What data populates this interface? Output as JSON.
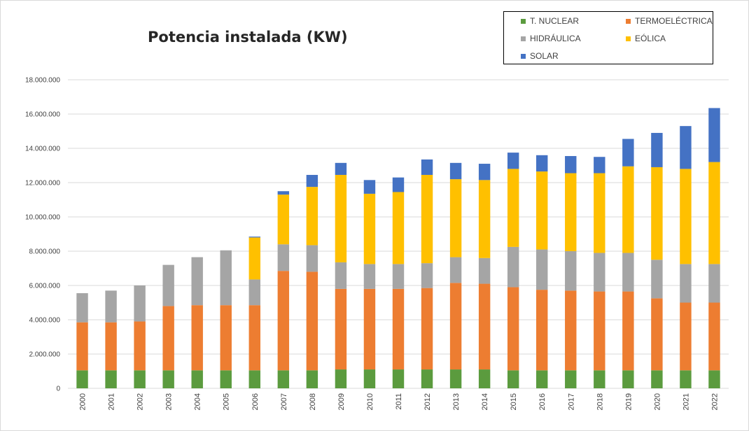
{
  "chart_data": {
    "type": "bar",
    "stacked": true,
    "title": "Potencia instalada (KW)",
    "xlabel": "",
    "ylabel": "",
    "ylim": [
      0,
      18000000
    ],
    "yticks": [
      "0",
      "2.000.000",
      "4.000.000",
      "6.000.000",
      "8.000.000",
      "10.000.000",
      "12.000.000",
      "14.000.000",
      "16.000.000",
      "18.000.000"
    ],
    "grid": true,
    "legend_position": "top-right",
    "categories": [
      "2000",
      "2001",
      "2002",
      "2003",
      "2004",
      "2005",
      "2006",
      "2007",
      "2008",
      "2009",
      "2010",
      "2011",
      "2012",
      "2013",
      "2014",
      "2015",
      "2016",
      "2017",
      "2018",
      "2019",
      "2020",
      "2021",
      "2022"
    ],
    "series": [
      {
        "name": "T. NUCLEAR",
        "color": "#5b9b3e",
        "values": [
          1050000,
          1050000,
          1050000,
          1050000,
          1050000,
          1050000,
          1050000,
          1050000,
          1050000,
          1100000,
          1100000,
          1100000,
          1100000,
          1100000,
          1100000,
          1050000,
          1050000,
          1050000,
          1050000,
          1050000,
          1050000,
          1050000,
          1050000
        ]
      },
      {
        "name": "TERMOELÉCTRICA",
        "color": "#ed7d31",
        "values": [
          2800000,
          2800000,
          2850000,
          3750000,
          3800000,
          3800000,
          3800000,
          5800000,
          5750000,
          4700000,
          4700000,
          4700000,
          4750000,
          5050000,
          5000000,
          4850000,
          4700000,
          4650000,
          4600000,
          4600000,
          4200000,
          3950000,
          3950000
        ]
      },
      {
        "name": "HIDRÁULICA",
        "color": "#a5a5a5",
        "values": [
          1700000,
          1850000,
          2100000,
          2400000,
          2800000,
          3200000,
          1500000,
          1550000,
          1550000,
          1550000,
          1450000,
          1450000,
          1450000,
          1500000,
          1500000,
          2350000,
          2350000,
          2300000,
          2250000,
          2250000,
          2250000,
          2250000,
          2250000
        ]
      },
      {
        "name": "EÓLICA",
        "color": "#ffc000",
        "values": [
          0,
          0,
          0,
          0,
          0,
          0,
          2450000,
          2900000,
          3400000,
          5100000,
          4100000,
          4200000,
          5150000,
          4550000,
          4550000,
          4550000,
          4550000,
          4550000,
          4650000,
          5050000,
          5400000,
          5550000,
          5950000
        ]
      },
      {
        "name": "SOLAR",
        "color": "#4472c4",
        "values": [
          0,
          0,
          0,
          0,
          0,
          0,
          50000,
          200000,
          700000,
          700000,
          800000,
          850000,
          900000,
          950000,
          950000,
          950000,
          950000,
          1000000,
          950000,
          1600000,
          2000000,
          2500000,
          3150000
        ]
      }
    ]
  }
}
